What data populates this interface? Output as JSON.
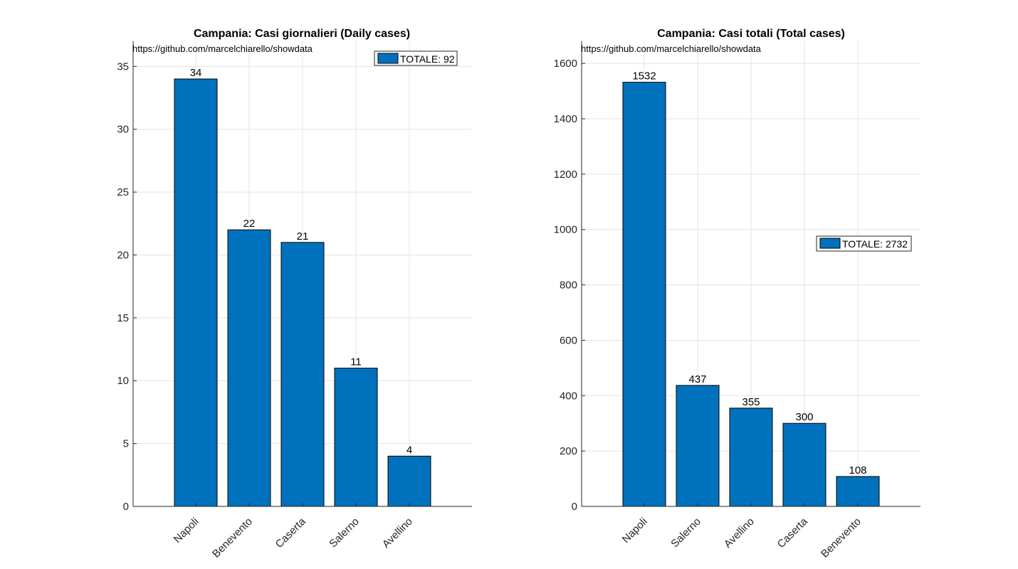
{
  "chart_data": [
    {
      "type": "bar",
      "title": "Campania: Casi giornalieri (Daily cases)",
      "source": "https://github.com/marcelchiarello/showdata",
      "categories": [
        "Napoli",
        "Benevento",
        "Caserta",
        "Salerno",
        "Avellino"
      ],
      "values": [
        34,
        22,
        21,
        11,
        4
      ],
      "legend": "TOTALE: 92",
      "ylim": [
        0,
        37
      ],
      "yticks": [
        0,
        5,
        10,
        15,
        20,
        25,
        30,
        35
      ],
      "grid": true,
      "legend_position": "top-right",
      "bar_color": "#0072BD"
    },
    {
      "type": "bar",
      "title": "Campania: Casi totali (Total cases)",
      "source": "https://github.com/marcelchiarello/showdata",
      "categories": [
        "Napoli",
        "Salerno",
        "Avellino",
        "Caserta",
        "Benevento"
      ],
      "values": [
        1532,
        437,
        355,
        300,
        108
      ],
      "legend": "TOTALE: 2732",
      "ylim": [
        0,
        1680
      ],
      "yticks": [
        0,
        200,
        400,
        600,
        800,
        1000,
        1200,
        1400,
        1600
      ],
      "grid": true,
      "legend_position": "right",
      "bar_color": "#0072BD"
    }
  ]
}
